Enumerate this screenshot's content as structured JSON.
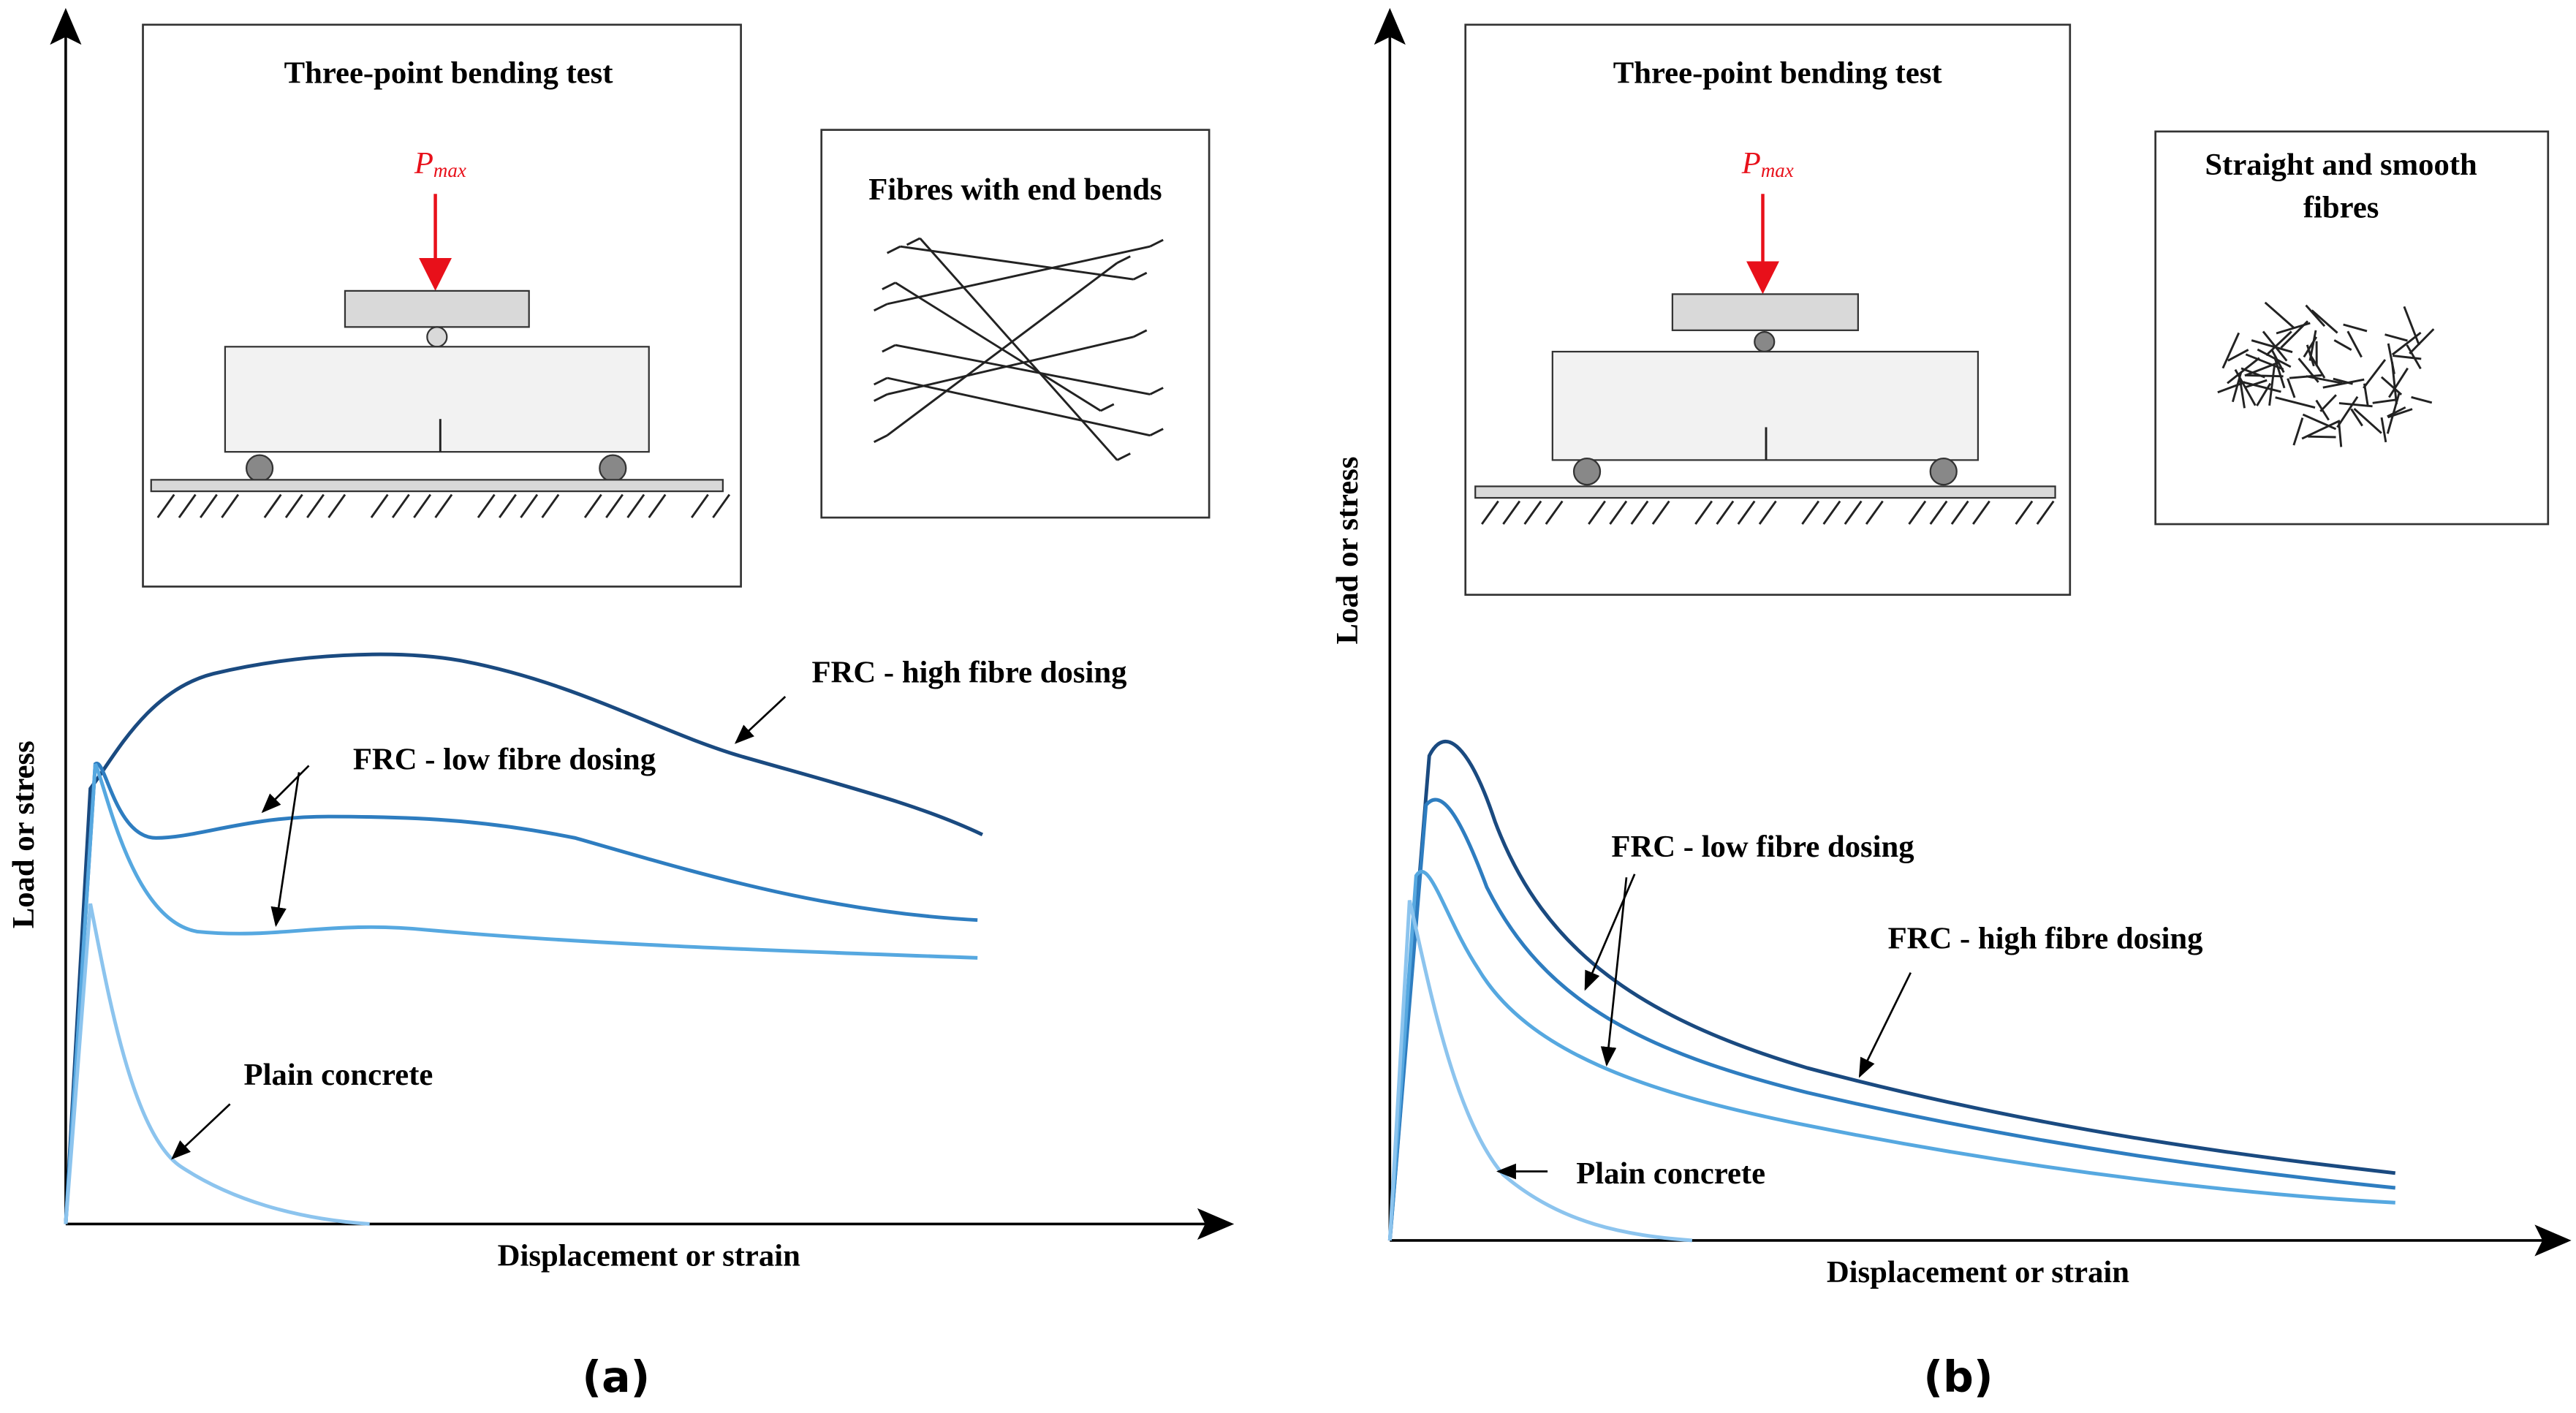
{
  "panels": [
    {
      "inset_title": "Three-point bending test",
      "load_label": "P",
      "load_subscript": "max",
      "fibre_title": [
        "Fibres with end bends"
      ],
      "curve_labels": {
        "high": "FRC - high fibre dosing",
        "low": "FRC - low fibre dosing",
        "plain": "Plain concrete"
      },
      "y_label": "Load or stress",
      "x_label": "Displacement or strain",
      "caption": "(a)"
    },
    {
      "inset_title": "Three-point bending test",
      "load_label": "P",
      "load_subscript": "max",
      "fibre_title": [
        "Straight and smooth",
        "fibres"
      ],
      "curve_labels": {
        "high": "FRC - high fibre dosing",
        "low": "FRC - low fibre dosing",
        "plain": "Plain concrete"
      },
      "y_label": "Load or stress",
      "x_label": "Displacement or strain",
      "caption": "(b)"
    }
  ]
}
